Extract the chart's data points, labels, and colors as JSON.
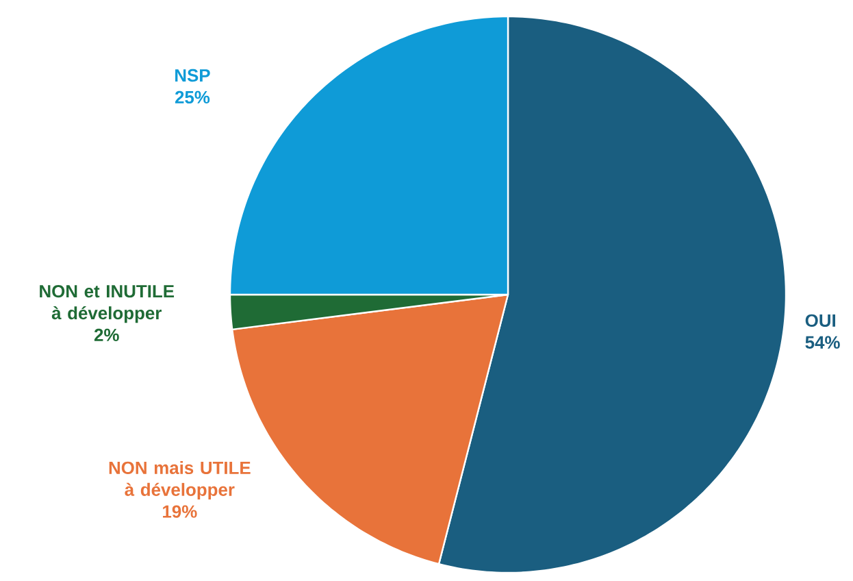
{
  "chart_data": {
    "type": "pie",
    "categories": [
      "OUI",
      "NON mais UTILE à développer",
      "NON et INUTILE à développer",
      "NSP"
    ],
    "values": [
      54,
      19,
      2,
      25
    ],
    "value_labels": [
      "54%",
      "19%",
      "2%",
      "25%"
    ],
    "colors": [
      "#1a5e80",
      "#e8733a",
      "#1f6b35",
      "#0f9bd7"
    ]
  }
}
